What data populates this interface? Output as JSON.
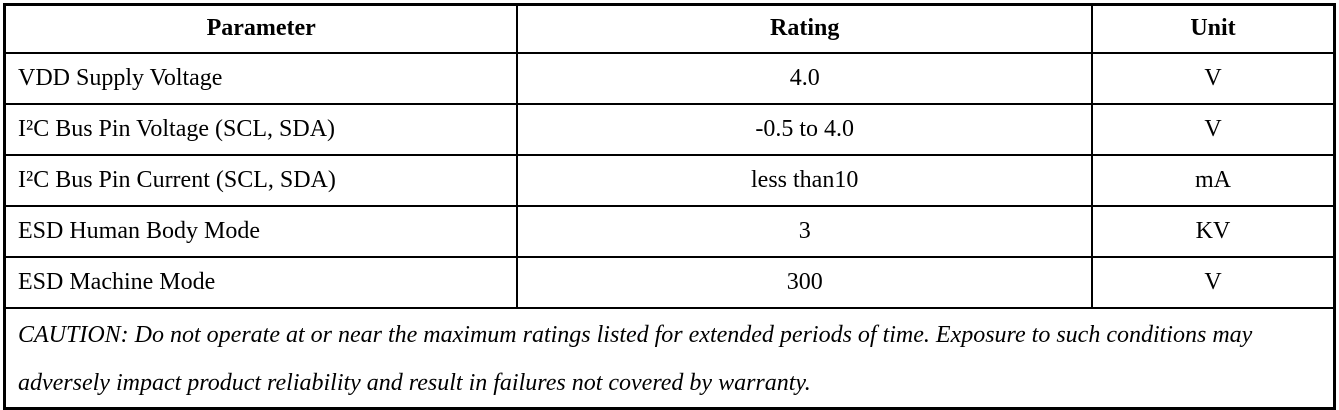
{
  "table": {
    "header": [
      "Parameter",
      "Rating",
      "Unit"
    ],
    "rows": [
      [
        "VDD Supply Voltage",
        "4.0",
        "V"
      ],
      [
        "I²C Bus Pin Voltage (SCL, SDA)",
        "-0.5 to 4.0",
        "V"
      ],
      [
        "I²C Bus Pin Current (SCL, SDA)",
        "less than10",
        "mA"
      ],
      [
        "ESD Human Body Mode",
        "3",
        "KV"
      ],
      [
        "ESD Machine Mode",
        "300",
        "V"
      ]
    ],
    "note": "CAUTION: Do not operate at or near the maximum ratings listed for extended periods of time. Exposure to such conditions may adversely impact product reliability and result in failures not covered by warranty."
  }
}
